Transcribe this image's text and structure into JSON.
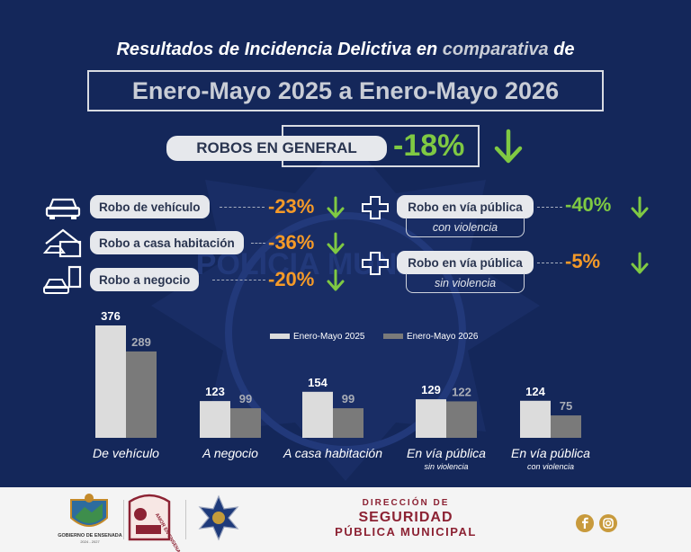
{
  "header": {
    "title_prefix": "Resultados de Incidencia Delictiva en ",
    "title_highlight": "comparativa",
    "title_suffix": " de",
    "period": "Enero-Mayo 2025 a Enero-Mayo 2026"
  },
  "general": {
    "label": "ROBOS EN GENERAL",
    "change": "-18%"
  },
  "watermark": "POLICIA MUNICIPAL",
  "left_items": [
    {
      "icon": "car-icon",
      "label": "Robo de vehículo",
      "change": "-23%"
    },
    {
      "icon": "house-icon",
      "label": "Robo a casa habitación",
      "change": "-36%"
    },
    {
      "icon": "store-icon",
      "label": "Robo a negocio",
      "change": "-20%"
    }
  ],
  "right_items": [
    {
      "icon": "cross-icon",
      "label": "Robo en vía pública",
      "sub": "con violencia",
      "change": "-40%"
    },
    {
      "icon": "cross-icon",
      "label": "Robo en vía pública",
      "sub": "sin violencia",
      "change": "-5%"
    }
  ],
  "colors": {
    "background": "#14275a",
    "bar_2025": "#dcdcdc",
    "bar_2026": "#7a7a7a",
    "decrease_green": "#7fc943",
    "decrease_orange": "#f59a28"
  },
  "chart_data": {
    "type": "bar",
    "legend_position": "top-right",
    "categories": [
      "De vehículo",
      "A negocio",
      "A casa habitación",
      "En vía pública",
      "En vía pública"
    ],
    "category_sublabels": [
      "",
      "",
      "",
      "sin violencia",
      "con violencia"
    ],
    "series": [
      {
        "name": "Enero-Mayo 2025",
        "values": [
          376,
          123,
          154,
          129,
          124
        ]
      },
      {
        "name": "Enero-Mayo 2026",
        "values": [
          289,
          99,
          99,
          122,
          75
        ]
      }
    ],
    "ylim": [
      0,
      376
    ]
  },
  "footer": {
    "logo_gov": "GOBIERNO DE ENSENADA",
    "logo_gov_years": "2024 - 2027",
    "logo_amor": "AMOR EN ENSENADA",
    "dept_top": "DIRECCIÓN DE",
    "dept_main": "SEGURIDAD",
    "dept_bottom": "PÚBLICA MUNICIPAL"
  }
}
